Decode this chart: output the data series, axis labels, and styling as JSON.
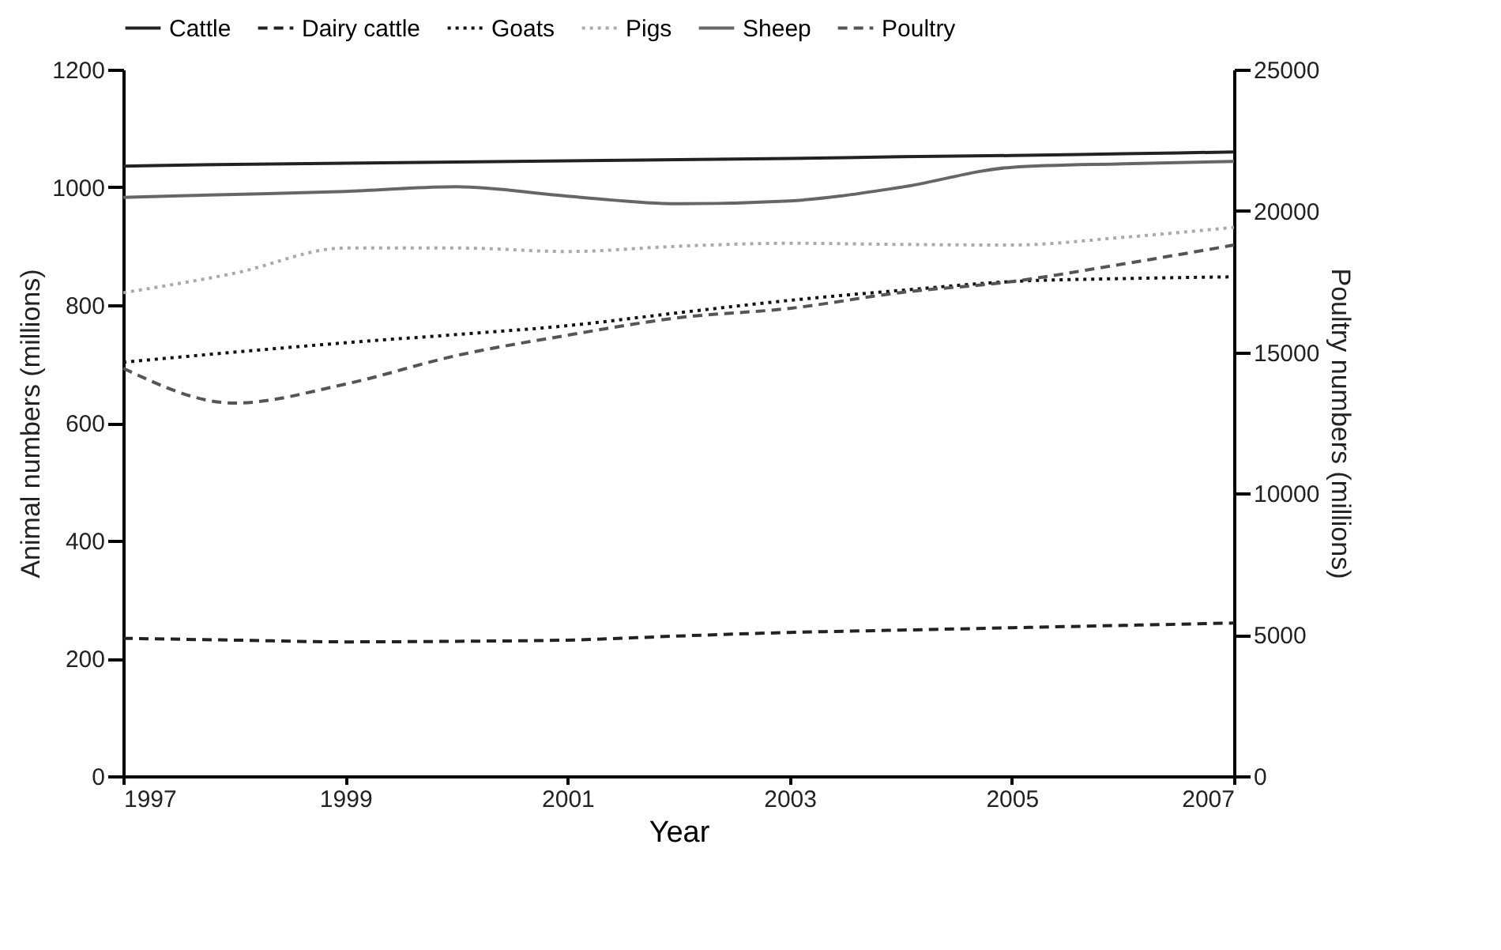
{
  "chart_data": {
    "type": "line",
    "xlabel": "Year",
    "ylabel": "Animal numbers (millions)",
    "y2label": "Poultry numbers (millions)",
    "x": [
      1997,
      1998,
      1999,
      2000,
      2001,
      2002,
      2003,
      2004,
      2005,
      2006,
      2007
    ],
    "series": [
      {
        "name": "Cattle",
        "color": "#222222",
        "line_style": "solid",
        "values": [
          1036,
          1039,
          1041,
          1043,
          1045,
          1047,
          1049,
          1052,
          1054,
          1057,
          1060
        ]
      },
      {
        "name": "Dairy cattle",
        "color": "#222222",
        "line_style": "dashed",
        "values": [
          234,
          231,
          228,
          229,
          231,
          238,
          244,
          248,
          252,
          256,
          260
        ]
      },
      {
        "name": "Goats",
        "color": "#111111",
        "line_style": "dotted",
        "values": [
          703,
          720,
          736,
          750,
          765,
          787,
          808,
          825,
          840,
          845,
          848
        ]
      },
      {
        "name": "Pigs",
        "color": "#aaaaaa",
        "line_style": "dotted",
        "values": [
          821,
          854,
          897,
          897,
          891,
          900,
          905,
          903,
          902,
          915,
          932
        ]
      },
      {
        "name": "Sheep",
        "color": "#666666",
        "line_style": "solid",
        "values": [
          983,
          988,
          993,
          1001,
          985,
          972,
          977,
          1000,
          1034,
          1040,
          1044
        ]
      },
      {
        "name": "Poultry",
        "color": "#555555",
        "line_style": "dashed",
        "axis": "y2",
        "values": [
          14430,
          13200,
          13870,
          14880,
          15600,
          16220,
          16550,
          17110,
          17500,
          18120,
          18790
        ]
      }
    ],
    "xlim": [
      1997,
      2007
    ],
    "xticks": [
      1997,
      1999,
      2001,
      2003,
      2005,
      2007
    ],
    "ylim": [
      0,
      1200
    ],
    "yticks": [
      0,
      200,
      400,
      600,
      800,
      1000,
      1200
    ],
    "y2lim": [
      0,
      25000
    ],
    "y2ticks": [
      0,
      5000,
      10000,
      15000,
      20000,
      25000
    ],
    "grid": false,
    "legend": "top"
  }
}
